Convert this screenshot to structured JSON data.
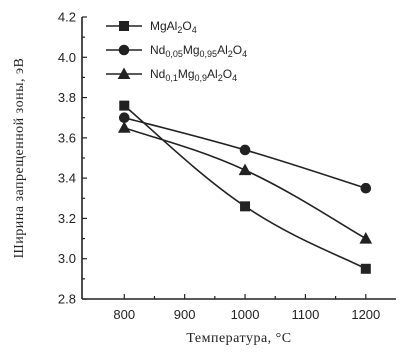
{
  "chart_data": {
    "type": "line",
    "xlabel": "Температура, °С",
    "ylabel": "Ширина запрещенной зоны, эВ",
    "xlim": [
      730,
      1250
    ],
    "ylim": [
      2.8,
      4.2
    ],
    "xticks": [
      800,
      900,
      1000,
      1100,
      1200
    ],
    "yticks": [
      2.8,
      3.0,
      3.2,
      3.4,
      3.6,
      3.8,
      4.0,
      4.2
    ],
    "legend_position": "top-left",
    "series": [
      {
        "name": "MgAl2O4",
        "legend": [
          {
            "t": "MgAl",
            "sub": false
          },
          {
            "t": "2",
            "sub": true
          },
          {
            "t": "O",
            "sub": false
          },
          {
            "t": "4",
            "sub": true
          }
        ],
        "marker": "square",
        "x": [
          800,
          1000,
          1200
        ],
        "y": [
          3.76,
          3.26,
          2.95
        ]
      },
      {
        "name": "Nd0,05Mg0,95Al2O4",
        "legend": [
          {
            "t": "Nd",
            "sub": false
          },
          {
            "t": "0,05",
            "sub": true
          },
          {
            "t": "Mg",
            "sub": false
          },
          {
            "t": "0,95",
            "sub": true
          },
          {
            "t": "Al",
            "sub": false
          },
          {
            "t": "2",
            "sub": true
          },
          {
            "t": "O",
            "sub": false
          },
          {
            "t": "4",
            "sub": true
          }
        ],
        "marker": "circle",
        "x": [
          800,
          1000,
          1200
        ],
        "y": [
          3.7,
          3.54,
          3.35
        ]
      },
      {
        "name": "Nd0,1Mg0,9Al2O4",
        "legend": [
          {
            "t": "Nd",
            "sub": false
          },
          {
            "t": "0,1",
            "sub": true
          },
          {
            "t": "Mg",
            "sub": false
          },
          {
            "t": "0,9",
            "sub": true
          },
          {
            "t": "Al",
            "sub": false
          },
          {
            "t": "2",
            "sub": true
          },
          {
            "t": "O",
            "sub": false
          },
          {
            "t": "4",
            "sub": true
          }
        ],
        "marker": "triangle",
        "x": [
          800,
          1000,
          1200
        ],
        "y": [
          3.65,
          3.44,
          3.1
        ]
      }
    ]
  }
}
